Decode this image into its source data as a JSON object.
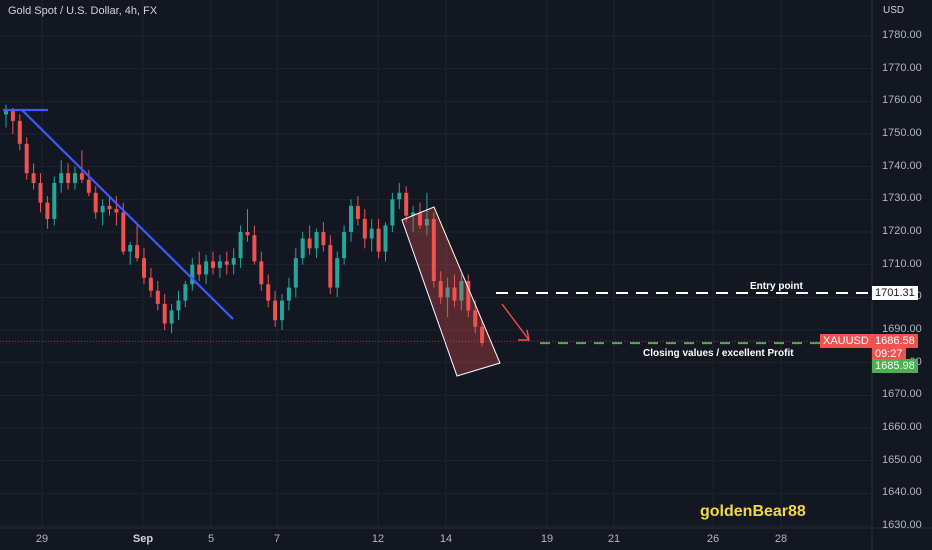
{
  "header": {
    "title": "Gold Spot / U.S. Dollar, 4h, FX",
    "currency": "USD"
  },
  "annotations": {
    "entry_point": "Entry point",
    "closing": "Closing values / excellent Profit",
    "brand": "goldenBear88"
  },
  "price_tags": {
    "entry_value": "1701.31",
    "symbol": "XAUUSD",
    "current_value": "1686.58",
    "countdown": "09:27",
    "target_value": "1685.98"
  },
  "colors": {
    "background": "#131722",
    "up": "#26a69a",
    "down": "#ef5350",
    "trendline": "#3d5afe",
    "target": "#4caf50",
    "brand": "#f5d742"
  },
  "chart_data": {
    "type": "candlestick",
    "symbol": "XAUUSD",
    "timeframe": "4h",
    "y_axis_ticks": [
      1630,
      1640,
      1650,
      1660,
      1670,
      1680,
      1690,
      1700,
      1710,
      1720,
      1730,
      1740,
      1750,
      1760,
      1770,
      1780
    ],
    "y_axis_labels": [
      "1630.00",
      "1640.00",
      "1650.00",
      "1660.00",
      "1670.00",
      "1680.00",
      "1690.00",
      "1700.00",
      "1710.00",
      "1720.00",
      "1730.00",
      "1740.00",
      "1750.00",
      "1760.00",
      "1770.00",
      "1780.00"
    ],
    "x_axis_labels": [
      {
        "label": "29",
        "bold": false
      },
      {
        "label": "Sep",
        "bold": true
      },
      {
        "label": "5",
        "bold": false
      },
      {
        "label": "7",
        "bold": false
      },
      {
        "label": "12",
        "bold": false
      },
      {
        "label": "14",
        "bold": false
      },
      {
        "label": "19",
        "bold": false
      },
      {
        "label": "21",
        "bold": false
      },
      {
        "label": "26",
        "bold": false
      },
      {
        "label": "28",
        "bold": false
      }
    ],
    "ylim": [
      1630,
      1785
    ],
    "candles": [
      [
        1756,
        1759,
        1752,
        1757
      ],
      [
        1757,
        1758,
        1750,
        1754
      ],
      [
        1754,
        1756,
        1745,
        1747
      ],
      [
        1747,
        1749,
        1736,
        1738
      ],
      [
        1738,
        1741,
        1733,
        1735
      ],
      [
        1735,
        1738,
        1726,
        1729
      ],
      [
        1729,
        1731,
        1721,
        1724
      ],
      [
        1724,
        1737,
        1722,
        1735
      ],
      [
        1735,
        1742,
        1732,
        1738
      ],
      [
        1738,
        1741,
        1733,
        1735
      ],
      [
        1735,
        1740,
        1733,
        1738
      ],
      [
        1738,
        1745,
        1735,
        1736
      ],
      [
        1736,
        1739,
        1731,
        1732
      ],
      [
        1732,
        1734,
        1724,
        1726
      ],
      [
        1726,
        1730,
        1722,
        1728
      ],
      [
        1728,
        1731,
        1725,
        1727
      ],
      [
        1727,
        1731,
        1722,
        1726
      ],
      [
        1726,
        1729,
        1713,
        1714
      ],
      [
        1714,
        1717,
        1710,
        1716
      ],
      [
        1716,
        1722,
        1711,
        1712
      ],
      [
        1712,
        1715,
        1704,
        1706
      ],
      [
        1706,
        1709,
        1700,
        1702
      ],
      [
        1702,
        1705,
        1696,
        1698
      ],
      [
        1698,
        1701,
        1690,
        1692
      ],
      [
        1692,
        1698,
        1689,
        1696
      ],
      [
        1696,
        1702,
        1693,
        1699
      ],
      [
        1699,
        1705,
        1697,
        1704
      ],
      [
        1704,
        1712,
        1702,
        1710
      ],
      [
        1710,
        1714,
        1705,
        1707
      ],
      [
        1707,
        1713,
        1704,
        1711
      ],
      [
        1711,
        1714,
        1707,
        1709
      ],
      [
        1709,
        1713,
        1706,
        1711
      ],
      [
        1711,
        1714,
        1707,
        1710
      ],
      [
        1710,
        1715,
        1707,
        1712
      ],
      [
        1712,
        1722,
        1709,
        1720
      ],
      [
        1720,
        1727,
        1717,
        1719
      ],
      [
        1719,
        1722,
        1710,
        1711
      ],
      [
        1711,
        1714,
        1702,
        1704
      ],
      [
        1704,
        1707,
        1697,
        1699
      ],
      [
        1699,
        1702,
        1691,
        1693
      ],
      [
        1693,
        1701,
        1690,
        1699
      ],
      [
        1699,
        1706,
        1696,
        1703
      ],
      [
        1703,
        1715,
        1700,
        1712
      ],
      [
        1712,
        1720,
        1710,
        1718
      ],
      [
        1718,
        1722,
        1713,
        1715
      ],
      [
        1715,
        1721,
        1712,
        1720
      ],
      [
        1720,
        1723,
        1714,
        1716
      ],
      [
        1716,
        1719,
        1701,
        1703
      ],
      [
        1703,
        1714,
        1700,
        1712
      ],
      [
        1712,
        1722,
        1710,
        1720
      ],
      [
        1720,
        1730,
        1717,
        1728
      ],
      [
        1728,
        1731,
        1722,
        1724
      ],
      [
        1724,
        1727,
        1715,
        1718
      ],
      [
        1718,
        1724,
        1714,
        1721
      ],
      [
        1721,
        1724,
        1712,
        1714
      ],
      [
        1714,
        1723,
        1711,
        1722
      ],
      [
        1722,
        1732,
        1720,
        1730
      ],
      [
        1730,
        1735,
        1727,
        1732
      ],
      [
        1732,
        1734,
        1723,
        1725
      ],
      [
        1725,
        1728,
        1720,
        1726
      ],
      [
        1726,
        1729,
        1721,
        1722
      ],
      [
        1722,
        1732,
        1719,
        1724
      ],
      [
        1724,
        1726,
        1703,
        1705
      ],
      [
        1705,
        1708,
        1698,
        1700
      ],
      [
        1700,
        1706,
        1694,
        1703
      ],
      [
        1703,
        1707,
        1697,
        1699
      ],
      [
        1699,
        1707,
        1696,
        1705
      ],
      [
        1705,
        1707,
        1694,
        1696
      ],
      [
        1696,
        1699,
        1689,
        1691
      ],
      [
        1691,
        1693,
        1685,
        1686
      ]
    ],
    "horizontal_levels": [
      {
        "name": "Entry point",
        "value": 1701.31
      },
      {
        "name": "Closing values / excellent Profit",
        "value": 1685.98
      }
    ],
    "current_price": 1686.58
  }
}
